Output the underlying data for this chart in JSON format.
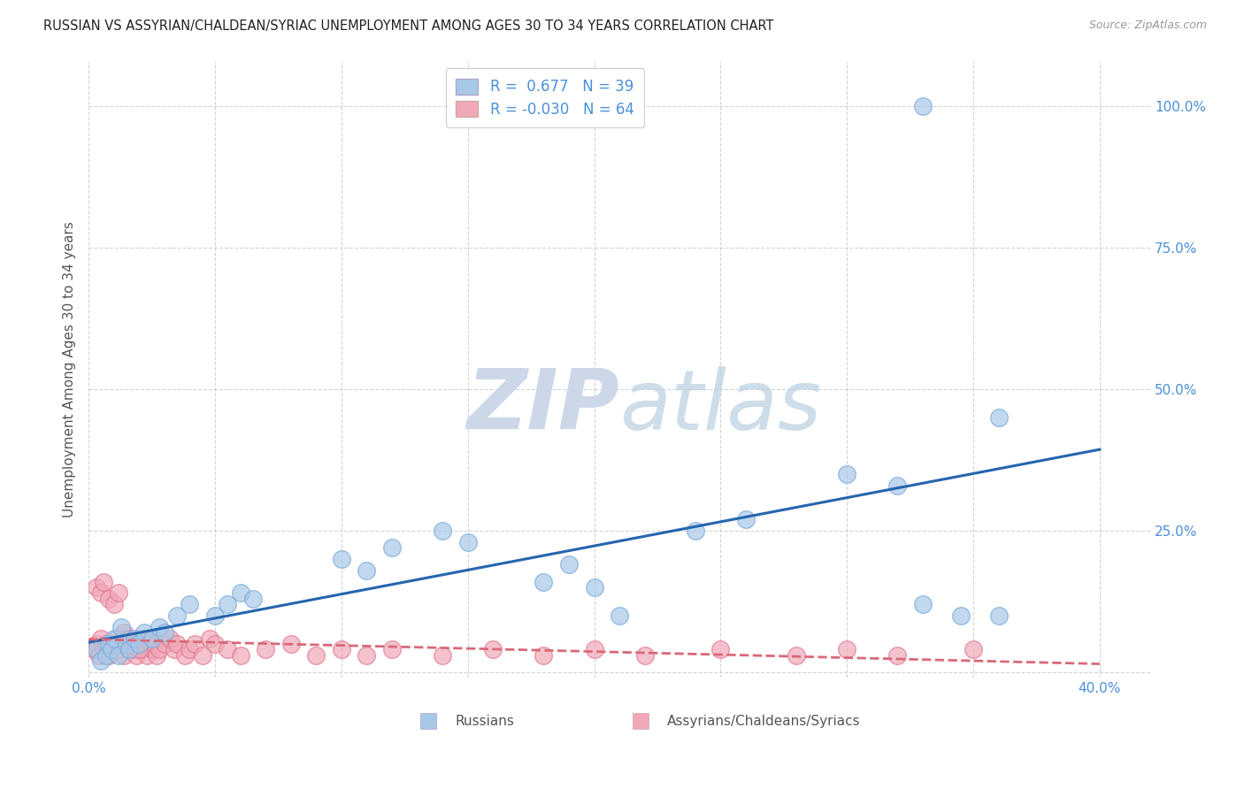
{
  "title": "RUSSIAN VS ASSYRIAN/CHALDEAN/SYRIAC UNEMPLOYMENT AMONG AGES 30 TO 34 YEARS CORRELATION CHART",
  "source": "Source: ZipAtlas.com",
  "ylabel": "Unemployment Among Ages 30 to 34 years",
  "xlim": [
    0.0,
    0.42
  ],
  "ylim": [
    -0.01,
    1.08
  ],
  "x_ticks": [
    0.0,
    0.05,
    0.1,
    0.15,
    0.2,
    0.25,
    0.3,
    0.35,
    0.4
  ],
  "x_tick_labels": [
    "0.0%",
    "",
    "",
    "",
    "",
    "",
    "",
    "",
    "40.0%"
  ],
  "y_ticks": [
    0.0,
    0.25,
    0.5,
    0.75,
    1.0
  ],
  "y_tick_labels": [
    "",
    "25.0%",
    "50.0%",
    "75.0%",
    "100.0%"
  ],
  "russian_color": "#a8c8e8",
  "russian_edge_color": "#7aabda",
  "assyrian_color": "#f0a8b8",
  "assyrian_edge_color": "#e07890",
  "russian_line_color": "#2565ae",
  "assyrian_line_color": "#d96878",
  "background_color": "#ffffff",
  "grid_color": "#c8c8d0",
  "title_color": "#222222",
  "axis_label_color": "#555555",
  "tick_label_color": "#4a90d9",
  "watermark_color": "#ccd8e8",
  "russians_x": [
    0.003,
    0.005,
    0.007,
    0.008,
    0.009,
    0.01,
    0.012,
    0.013,
    0.015,
    0.016,
    0.018,
    0.02,
    0.022,
    0.025,
    0.028,
    0.03,
    0.035,
    0.04,
    0.05,
    0.055,
    0.06,
    0.065,
    0.1,
    0.11,
    0.12,
    0.14,
    0.15,
    0.18,
    0.19,
    0.2,
    0.21,
    0.24,
    0.26,
    0.3,
    0.32,
    0.33,
    0.345,
    0.36,
    0.36,
    0.33
  ],
  "russians_y": [
    0.04,
    0.02,
    0.03,
    0.05,
    0.04,
    0.06,
    0.03,
    0.08,
    0.05,
    0.04,
    0.06,
    0.05,
    0.07,
    0.06,
    0.08,
    0.07,
    0.1,
    0.12,
    0.1,
    0.12,
    0.14,
    0.13,
    0.2,
    0.18,
    0.22,
    0.25,
    0.23,
    0.16,
    0.19,
    0.15,
    0.1,
    0.25,
    0.27,
    0.35,
    0.33,
    0.12,
    0.1,
    0.1,
    0.45,
    1.0
  ],
  "assyrians_x": [
    0.002,
    0.003,
    0.004,
    0.005,
    0.006,
    0.007,
    0.008,
    0.009,
    0.01,
    0.011,
    0.012,
    0.013,
    0.014,
    0.015,
    0.016,
    0.017,
    0.018,
    0.019,
    0.02,
    0.021,
    0.022,
    0.023,
    0.024,
    0.025,
    0.026,
    0.027,
    0.028,
    0.03,
    0.032,
    0.034,
    0.035,
    0.038,
    0.04,
    0.042,
    0.045,
    0.048,
    0.05,
    0.055,
    0.06,
    0.07,
    0.08,
    0.09,
    0.1,
    0.11,
    0.12,
    0.14,
    0.16,
    0.18,
    0.2,
    0.22,
    0.25,
    0.28,
    0.3,
    0.32,
    0.35,
    0.003,
    0.005,
    0.006,
    0.008,
    0.01,
    0.012,
    0.014,
    0.016,
    0.018,
    0.02
  ],
  "assyrians_y": [
    0.04,
    0.05,
    0.03,
    0.06,
    0.04,
    0.05,
    0.03,
    0.04,
    0.05,
    0.06,
    0.04,
    0.05,
    0.03,
    0.06,
    0.04,
    0.05,
    0.04,
    0.03,
    0.05,
    0.04,
    0.06,
    0.03,
    0.05,
    0.04,
    0.05,
    0.03,
    0.04,
    0.05,
    0.06,
    0.04,
    0.05,
    0.03,
    0.04,
    0.05,
    0.03,
    0.06,
    0.05,
    0.04,
    0.03,
    0.04,
    0.05,
    0.03,
    0.04,
    0.03,
    0.04,
    0.03,
    0.04,
    0.03,
    0.04,
    0.03,
    0.04,
    0.03,
    0.04,
    0.03,
    0.04,
    0.15,
    0.14,
    0.16,
    0.13,
    0.12,
    0.14,
    0.07,
    0.06,
    0.05,
    0.04
  ]
}
